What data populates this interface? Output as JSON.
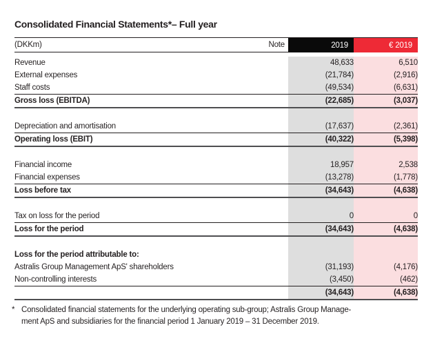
{
  "title": "Consolidated Financial Statements*– Full year",
  "table": {
    "unit_label": "(DKKm)",
    "note_header": "Note",
    "columns": [
      {
        "key": "dkk",
        "label": "2019",
        "header_bg": "#0a0a0a",
        "header_fg": "#ffffff",
        "body_bg": "#dedede"
      },
      {
        "key": "eur",
        "label": "€ 2019",
        "header_bg": "#ee2a36",
        "header_fg": "#ffffff",
        "body_bg": "#fbdee0"
      }
    ],
    "rows": [
      {
        "type": "data",
        "label": "Revenue",
        "note": "",
        "dkk": "48,633",
        "eur": "6,510",
        "style": "normal"
      },
      {
        "type": "data",
        "label": "External expenses",
        "note": "",
        "dkk": "(21,784)",
        "eur": "(2,916)",
        "style": "normal"
      },
      {
        "type": "data",
        "label": "Staff costs",
        "note": "",
        "dkk": "(49,534)",
        "eur": "(6,631)",
        "style": "normal"
      },
      {
        "type": "data",
        "label": "Gross loss (EBITDA)",
        "note": "",
        "dkk": "(22,685)",
        "eur": "(3,037)",
        "style": "bold",
        "rule_top": true,
        "rule_bottom": true
      },
      {
        "type": "spacer"
      },
      {
        "type": "data",
        "label": "Depreciation and amortisation",
        "note": "",
        "dkk": "(17,637)",
        "eur": "(2,361)",
        "style": "normal"
      },
      {
        "type": "data",
        "label": "Operating loss (EBIT)",
        "note": "",
        "dkk": "(40,322)",
        "eur": "(5,398)",
        "style": "bold",
        "rule_top": true,
        "rule_bottom": true
      },
      {
        "type": "spacer"
      },
      {
        "type": "data",
        "label": "Financial income",
        "note": "",
        "dkk": "18,957",
        "eur": "2,538",
        "style": "normal"
      },
      {
        "type": "data",
        "label": "Financial expenses",
        "note": "",
        "dkk": "(13,278)",
        "eur": "(1,778)",
        "style": "normal"
      },
      {
        "type": "data",
        "label": "Loss before tax",
        "note": "",
        "dkk": "(34,643)",
        "eur": "(4,638)",
        "style": "bold",
        "rule_top": true,
        "rule_bottom": true
      },
      {
        "type": "spacer"
      },
      {
        "type": "data",
        "label": "Tax on loss for the period",
        "note": "",
        "dkk": "0",
        "eur": "0",
        "style": "normal"
      },
      {
        "type": "data",
        "label": "Loss for the period",
        "note": "",
        "dkk": "(34,643)",
        "eur": "(4,638)",
        "style": "bold",
        "rule_top": true,
        "rule_bottom": true
      },
      {
        "type": "spacer"
      },
      {
        "type": "data",
        "label": "Loss for the period attributable to:",
        "note": "",
        "dkk": "",
        "eur": "",
        "style": "bold"
      },
      {
        "type": "data",
        "label": "Astralis Group Management ApS' shareholders",
        "note": "",
        "dkk": "(31,193)",
        "eur": "(4,176)",
        "style": "normal"
      },
      {
        "type": "data",
        "label": "Non-controlling interests",
        "note": "",
        "dkk": "(3,450)",
        "eur": "(462)",
        "style": "normal"
      },
      {
        "type": "data",
        "label": "",
        "note": "",
        "dkk": "(34,643)",
        "eur": "(4,638)",
        "style": "bold",
        "rule_top": true,
        "rule_bottom": true
      }
    ]
  },
  "footnote": {
    "marker": "*",
    "line1": "Consolidated financial statements for the underlying operating sub-group; Astralis Group Manage-",
    "line2": "ment ApS and subsidiaries for the financial period 1 January 2019 – 31 December 2019."
  }
}
